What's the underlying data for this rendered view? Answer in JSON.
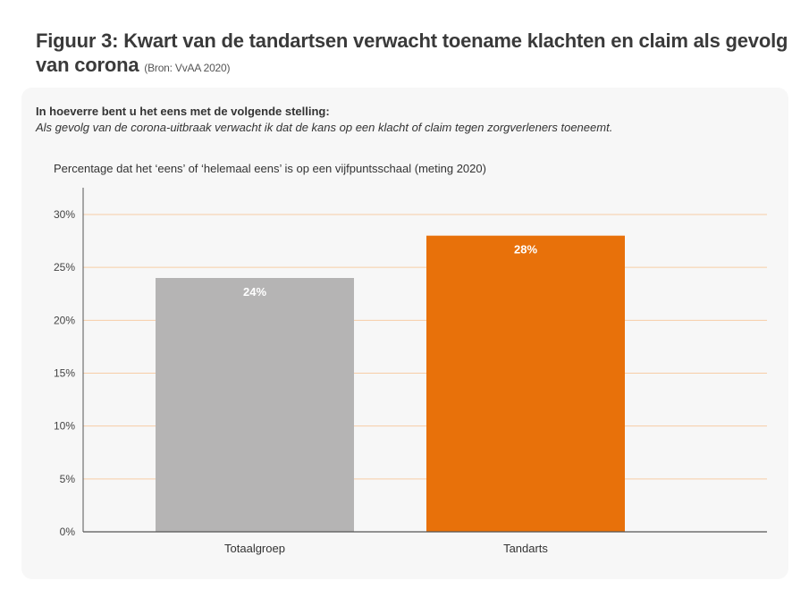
{
  "title": "Figuur 3: Kwart van de tandartsen verwacht toename klachten en claim als gevolg van corona",
  "source": "(Bron: VvAA 2020)",
  "question": "In hoeverre bent u het eens met de volgende stelling:",
  "statement": "Als gevolg van de corona-uitbraak verwacht ik dat de kans op een klacht of claim tegen zorgverleners toeneemt.",
  "chart_data": {
    "type": "bar",
    "title": "Percentage dat het ‘eens’ of ‘helemaal eens’ is op een vijfpuntsschaal (meting 2020)",
    "categories": [
      "Totaalgroep",
      "Tandarts"
    ],
    "values": [
      24,
      28
    ],
    "data_labels": [
      "24%",
      "28%"
    ],
    "colors": [
      "#b5b4b4",
      "#e8710a"
    ],
    "ylim": [
      0,
      30
    ],
    "yticks": [
      "0%",
      "5%",
      "10%",
      "15%",
      "20%",
      "25%",
      "30%"
    ],
    "grid": true,
    "grid_color": "#f7cda6"
  }
}
